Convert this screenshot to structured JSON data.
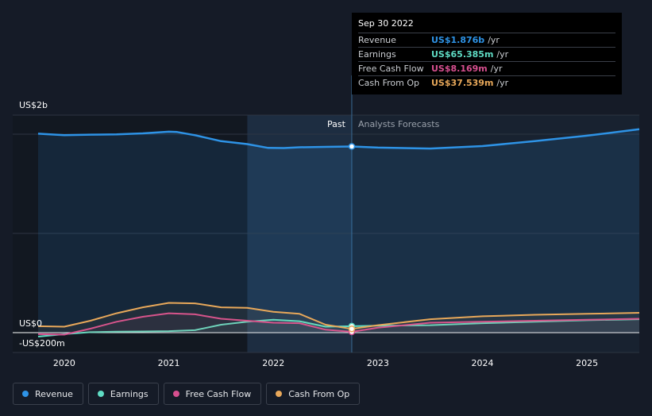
{
  "chart_data": {
    "type": "line",
    "ylabel_top": "US$2b",
    "ylabel_zero": "US$0",
    "ylabel_bottom": "-US$200m",
    "ylim": [
      -200,
      2000
    ],
    "xlim": [
      2019.75,
      2025.5
    ],
    "x_ticks": [
      {
        "label": "2020",
        "value": 2020
      },
      {
        "label": "2021",
        "value": 2021
      },
      {
        "label": "2022",
        "value": 2022
      },
      {
        "label": "2023",
        "value": 2023
      },
      {
        "label": "2024",
        "value": 2024
      },
      {
        "label": "2025",
        "value": 2025
      }
    ],
    "gridlines": [
      2000,
      1000
    ],
    "past_label": "Past",
    "forecast_label": "Analysts Forecasts",
    "highlight_start": 2021.75,
    "divider_x": 2022.75,
    "series": [
      {
        "name": "Revenue",
        "color": "#2e93e6",
        "fill": true,
        "x": [
          2019.75,
          2020.0,
          2020.25,
          2020.5,
          2020.75,
          2021.0,
          2021.08,
          2021.25,
          2021.5,
          2021.75,
          2021.95,
          2022.1,
          2022.25,
          2022.5,
          2022.75,
          2023.0,
          2023.5,
          2024.0,
          2024.5,
          2025.0,
          2025.5
        ],
        "values": [
          2005,
          1990,
          1995,
          1998,
          2008,
          2025,
          2022,
          1990,
          1930,
          1900,
          1862,
          1860,
          1868,
          1872,
          1876,
          1865,
          1855,
          1880,
          1930,
          1985,
          2050
        ]
      },
      {
        "name": "Earnings",
        "color": "#5fdcc4",
        "fill": false,
        "x": [
          2019.75,
          2020.0,
          2020.25,
          2020.5,
          2020.75,
          2021.0,
          2021.25,
          2021.5,
          2021.75,
          2022.0,
          2022.25,
          2022.5,
          2022.75,
          2023.0,
          2023.5,
          2024.0,
          2024.5,
          2025.0,
          2025.5
        ],
        "values": [
          -40,
          -15,
          5,
          10,
          12,
          15,
          25,
          80,
          110,
          130,
          115,
          60,
          65,
          70,
          75,
          95,
          110,
          125,
          135
        ]
      },
      {
        "name": "Free Cash Flow",
        "color": "#d64f8f",
        "fill": false,
        "x": [
          2019.75,
          2020.0,
          2020.25,
          2020.5,
          2020.75,
          2021.0,
          2021.25,
          2021.5,
          2021.75,
          2022.0,
          2022.25,
          2022.5,
          2022.75,
          2023.0,
          2023.5,
          2024.0,
          2024.5,
          2025.0,
          2025.5
        ],
        "values": [
          -15,
          -20,
          40,
          110,
          160,
          195,
          185,
          140,
          120,
          100,
          95,
          30,
          8,
          50,
          100,
          110,
          120,
          130,
          140
        ]
      },
      {
        "name": "Cash From Op",
        "color": "#e8a85a",
        "fill": false,
        "x": [
          2019.75,
          2020.0,
          2020.25,
          2020.5,
          2020.75,
          2021.0,
          2021.25,
          2021.5,
          2021.75,
          2022.0,
          2022.25,
          2022.5,
          2022.75,
          2023.0,
          2023.5,
          2024.0,
          2024.5,
          2025.0,
          2025.5
        ],
        "values": [
          65,
          60,
          120,
          195,
          255,
          300,
          295,
          255,
          250,
          210,
          190,
          80,
          38,
          75,
          135,
          165,
          180,
          190,
          200
        ]
      }
    ]
  },
  "tooltip": {
    "date": "Sep 30 2022",
    "rows": [
      {
        "name": "Revenue",
        "value": "US$1.876b",
        "unit": "/yr",
        "color": "#2e93e6"
      },
      {
        "name": "Earnings",
        "value": "US$65.385m",
        "unit": "/yr",
        "color": "#5fdcc4"
      },
      {
        "name": "Free Cash Flow",
        "value": "US$8.169m",
        "unit": "/yr",
        "color": "#d64f8f"
      },
      {
        "name": "Cash From Op",
        "value": "US$37.539m",
        "unit": "/yr",
        "color": "#e8a85a"
      }
    ]
  },
  "legend": [
    {
      "label": "Revenue",
      "color": "#2e93e6"
    },
    {
      "label": "Earnings",
      "color": "#5fdcc4"
    },
    {
      "label": "Free Cash Flow",
      "color": "#d64f8f"
    },
    {
      "label": "Cash From Op",
      "color": "#e8a85a"
    }
  ]
}
